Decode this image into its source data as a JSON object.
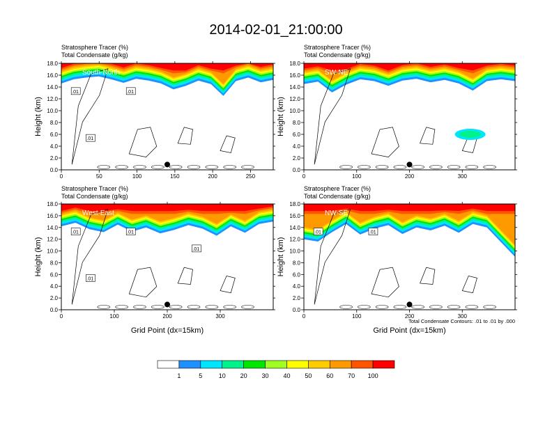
{
  "page": {
    "title": "2014-02-01_21:00:00",
    "footnote": "Total Condensate Contours: .01 to .01 by .000",
    "xlabel": "Grid Point (dx=15km)"
  },
  "chart_data": {
    "type": "heatmap",
    "title": "2014-02-01_21:00:00",
    "colorbar": {
      "levels": [
        "1",
        "5",
        "10",
        "20",
        "30",
        "40",
        "50",
        "60",
        "70",
        "100"
      ],
      "colors": [
        "#ffffff",
        "#1e90ff",
        "#00e5ff",
        "#00f28a",
        "#00e600",
        "#a0ff20",
        "#ffff00",
        "#ffcc00",
        "#ff9900",
        "#ff5500",
        "#ff0000"
      ]
    },
    "panels": [
      {
        "name": "South-North",
        "subtitle_1": "Stratosphere Tracer   (%)",
        "subtitle_2": "Total Condensate   (g/kg)",
        "ylabel": "Height (km)",
        "xlabel": "",
        "xlim": [
          0,
          280
        ],
        "ylim": [
          0,
          18
        ],
        "xticks": [
          0,
          50,
          100,
          150,
          200,
          250
        ],
        "yticks": [
          0,
          2,
          4,
          6,
          8,
          10,
          12,
          14,
          16,
          18
        ],
        "tick_labels_y": [
          "0.0",
          "2.0",
          "4.0",
          "6.0",
          "8.0",
          "10.0",
          "12.0",
          "14.0",
          "16.0",
          "18.0"
        ],
        "marker_x": 140,
        "contour_labels": [
          ".01",
          ".01",
          ".01"
        ],
        "tracer_profile_top_km": [
          14.6,
          15.3,
          15.6,
          15.8,
          15.3,
          14.7,
          15.4,
          15.1,
          14.6,
          13.6,
          14.2,
          15.1,
          14.5,
          12.5,
          15.0,
          15.6,
          14.8,
          15.2
        ]
      },
      {
        "name": "SW-NE",
        "subtitle_1": "Stratosphere Tracer   (%)",
        "subtitle_2": "Total Condensate   (g/kg)",
        "ylabel": "Height (km)",
        "xlabel": "",
        "xlim": [
          0,
          400
        ],
        "ylim": [
          0,
          18
        ],
        "xticks": [
          0,
          100,
          200,
          300
        ],
        "yticks": [
          0,
          2,
          4,
          6,
          8,
          10,
          12,
          14,
          16,
          18
        ],
        "tick_labels_y": [
          "0.0",
          "2.0",
          "4.0",
          "6.0",
          "8.0",
          "10.0",
          "12.0",
          "14.0",
          "16.0",
          "18.0"
        ],
        "marker_x": 200,
        "contour_labels": [],
        "tracer_profile_top_km": [
          14.5,
          14.9,
          13.1,
          14.4,
          15.3,
          15.0,
          14.2,
          15.1,
          15.4,
          14.8,
          15.2,
          14.6,
          13.4,
          15.0,
          15.3,
          15.0
        ]
      },
      {
        "name": "West-East",
        "subtitle_1": "Stratosphere Tracer   (%)",
        "subtitle_2": "Total Condensate   (g/kg)",
        "ylabel": "Height (km)",
        "xlabel": "Grid Point (dx=15km)",
        "xlim": [
          0,
          400
        ],
        "ylim": [
          0,
          18
        ],
        "xticks": [
          0,
          100,
          200,
          300
        ],
        "yticks": [
          0,
          2,
          4,
          6,
          8,
          10,
          12,
          14,
          16,
          18
        ],
        "tick_labels_y": [
          "0.0",
          "2.0",
          "4.0",
          "6.0",
          "8.0",
          "10.0",
          "12.0",
          "14.0",
          "16.0",
          "18.0"
        ],
        "marker_x": 200,
        "contour_labels": [
          ".01",
          ".01",
          ".01",
          ".01"
        ],
        "tracer_profile_top_km": [
          14.2,
          14.8,
          13.7,
          13.2,
          14.5,
          13.3,
          14.0,
          13.0,
          13.6,
          14.4,
          13.8,
          12.6,
          14.2,
          13.1,
          14.6,
          15.0
        ]
      },
      {
        "name": "NW-SE",
        "subtitle_1": "Stratosphere Tracer   (%)",
        "subtitle_2": "Total Condensate   (g/kg)",
        "ylabel": "Height (km)",
        "xlabel": "Grid Point (dx=15km)",
        "xlim": [
          0,
          400
        ],
        "ylim": [
          0,
          18
        ],
        "xticks": [
          0,
          100,
          200,
          300
        ],
        "yticks": [
          0,
          2,
          4,
          6,
          8,
          10,
          12,
          14,
          16,
          18
        ],
        "tick_labels_y": [
          "0.0",
          "2.0",
          "4.0",
          "6.0",
          "8.0",
          "10.0",
          "12.0",
          "14.0",
          "16.0",
          "18.0"
        ],
        "marker_x": 200,
        "contour_labels": [
          ".01",
          ".01"
        ],
        "tracer_profile_top_km": [
          12.0,
          11.6,
          13.2,
          14.6,
          12.8,
          13.8,
          14.4,
          12.9,
          14.0,
          13.5,
          14.3,
          13.1,
          14.6,
          14.0,
          11.5,
          9.0
        ]
      }
    ]
  }
}
